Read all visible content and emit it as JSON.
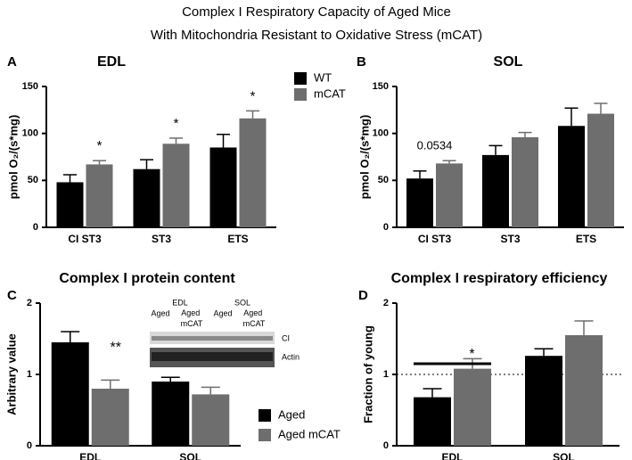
{
  "title": "Complex I Respiratory Capacity of Aged Mice",
  "subtitle": "With Mitochondria Resistant to Oxidative Stress (mCAT)",
  "chart_data": [
    {
      "type": "bar",
      "panel": "A",
      "title": "EDL",
      "ylabel": "pmol O₂/(s*mg)",
      "categories": [
        "CI ST3",
        "ST3",
        "ETS"
      ],
      "series": [
        {
          "name": "WT",
          "color": "#000000",
          "values": [
            48,
            62,
            85
          ],
          "errors": [
            8,
            10,
            14
          ]
        },
        {
          "name": "mCAT",
          "color": "#6e6e6e",
          "values": [
            67,
            89,
            116
          ],
          "errors": [
            4,
            6,
            8
          ]
        }
      ],
      "annotations": [
        "*",
        "*",
        "*"
      ],
      "ylim": [
        0,
        150
      ],
      "yticks": [
        0,
        50,
        100,
        150
      ],
      "grid": false,
      "legend": "right"
    },
    {
      "type": "bar",
      "panel": "B",
      "title": "SOL",
      "ylabel": "pmol O₂/(s*mg)",
      "categories": [
        "CI ST3",
        "ST3",
        "ETS"
      ],
      "series": [
        {
          "name": "WT",
          "color": "#000000",
          "values": [
            52,
            77,
            108
          ],
          "errors": [
            8,
            10,
            19
          ]
        },
        {
          "name": "mCAT",
          "color": "#6e6e6e",
          "values": [
            68,
            96,
            121
          ],
          "errors": [
            3,
            5,
            11
          ]
        }
      ],
      "annotations": [
        "0.0534"
      ],
      "ylim": [
        0,
        150
      ],
      "yticks": [
        0,
        50,
        100,
        150
      ],
      "grid": false
    },
    {
      "type": "bar",
      "panel": "C",
      "title": "Complex I protein content",
      "ylabel": "Arbitrary value",
      "categories": [
        "EDL",
        "SOL"
      ],
      "series": [
        {
          "name": "Aged",
          "color": "#000000",
          "values": [
            1.45,
            0.9
          ],
          "errors": [
            0.15,
            0.06
          ]
        },
        {
          "name": "Aged mCAT",
          "color": "#6e6e6e",
          "values": [
            0.8,
            0.72
          ],
          "errors": [
            0.12,
            0.1
          ]
        }
      ],
      "annotations": [
        "**"
      ],
      "inset": {
        "groups": [
          "EDL",
          "SOL"
        ],
        "lanes": [
          "Aged",
          "Aged mCAT",
          "Aged",
          "Aged mCAT"
        ],
        "bands": [
          "CI",
          "Actin"
        ]
      },
      "ylim": [
        0,
        2
      ],
      "yticks": [
        0,
        1,
        2
      ],
      "grid": false,
      "legend": "lower right"
    },
    {
      "type": "bar",
      "panel": "D",
      "title": "Complex I respiratory efficiency",
      "ylabel": "Fraction of young",
      "categories": [
        "EDL",
        "SOL"
      ],
      "series": [
        {
          "name": "Aged",
          "color": "#000000",
          "values": [
            0.68,
            1.26
          ],
          "errors": [
            0.12,
            0.1
          ]
        },
        {
          "name": "Aged mCAT",
          "color": "#6e6e6e",
          "values": [
            1.08,
            1.55
          ],
          "errors": [
            0.14,
            0.2
          ]
        }
      ],
      "annotations": [
        "*"
      ],
      "hline": 1,
      "ylim": [
        0,
        2
      ],
      "yticks": [
        0,
        1,
        2
      ],
      "grid": false
    }
  ]
}
